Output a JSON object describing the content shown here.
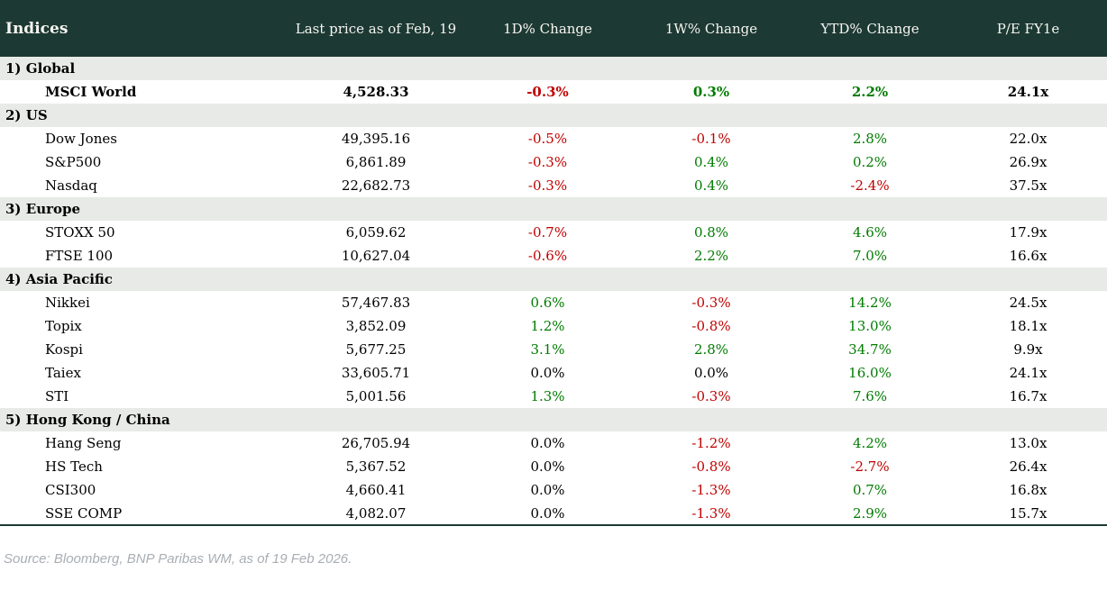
{
  "chart_data": {
    "type": "table",
    "columns": [
      "Indices",
      "Last price as of Feb, 19",
      "1D% Change",
      "1W% Change",
      "YTD% Change",
      "P/E FY1e"
    ],
    "sections": [
      {
        "label": "1) Global",
        "rows": [
          {
            "name": "MSCI World",
            "bold": true,
            "last_price": "4,528.33",
            "change_1d": "-0.3%",
            "change_1w": "0.3%",
            "change_ytd": "2.2%",
            "pe_fy1e": "24.1x"
          }
        ]
      },
      {
        "label": "2) US",
        "rows": [
          {
            "name": "Dow Jones",
            "bold": false,
            "last_price": "49,395.16",
            "change_1d": "-0.5%",
            "change_1w": "-0.1%",
            "change_ytd": "2.8%",
            "pe_fy1e": "22.0x"
          },
          {
            "name": "S&P500",
            "bold": false,
            "last_price": "6,861.89",
            "change_1d": "-0.3%",
            "change_1w": "0.4%",
            "change_ytd": "0.2%",
            "pe_fy1e": "26.9x"
          },
          {
            "name": "Nasdaq",
            "bold": false,
            "last_price": "22,682.73",
            "change_1d": "-0.3%",
            "change_1w": "0.4%",
            "change_ytd": "-2.4%",
            "pe_fy1e": "37.5x"
          }
        ]
      },
      {
        "label": "3) Europe",
        "rows": [
          {
            "name": "STOXX 50",
            "bold": false,
            "last_price": "6,059.62",
            "change_1d": "-0.7%",
            "change_1w": "0.8%",
            "change_ytd": "4.6%",
            "pe_fy1e": "17.9x"
          },
          {
            "name": "FTSE 100",
            "bold": false,
            "last_price": "10,627.04",
            "change_1d": "-0.6%",
            "change_1w": "2.2%",
            "change_ytd": "7.0%",
            "pe_fy1e": "16.6x"
          }
        ]
      },
      {
        "label": "4) Asia Pacific",
        "rows": [
          {
            "name": "Nikkei",
            "bold": false,
            "last_price": "57,467.83",
            "change_1d": "0.6%",
            "change_1w": "-0.3%",
            "change_ytd": "14.2%",
            "pe_fy1e": "24.5x"
          },
          {
            "name": "Topix",
            "bold": false,
            "last_price": "3,852.09",
            "change_1d": "1.2%",
            "change_1w": "-0.8%",
            "change_ytd": "13.0%",
            "pe_fy1e": "18.1x"
          },
          {
            "name": "Kospi",
            "bold": false,
            "last_price": "5,677.25",
            "change_1d": "3.1%",
            "change_1w": "2.8%",
            "change_ytd": "34.7%",
            "pe_fy1e": "9.9x"
          },
          {
            "name": "Taiex",
            "bold": false,
            "last_price": "33,605.71",
            "change_1d": "0.0%",
            "change_1w": "0.0%",
            "change_ytd": "16.0%",
            "pe_fy1e": "24.1x"
          },
          {
            "name": "STI",
            "bold": false,
            "last_price": "5,001.56",
            "change_1d": "1.3%",
            "change_1w": "-0.3%",
            "change_ytd": "7.6%",
            "pe_fy1e": "16.7x"
          }
        ]
      },
      {
        "label": "5) Hong Kong / China",
        "rows": [
          {
            "name": "Hang Seng",
            "bold": false,
            "last_price": "26,705.94",
            "change_1d": "0.0%",
            "change_1w": "-1.2%",
            "change_ytd": "4.2%",
            "pe_fy1e": "13.0x"
          },
          {
            "name": "HS Tech",
            "bold": false,
            "last_price": "5,367.52",
            "change_1d": "0.0%",
            "change_1w": "-0.8%",
            "change_ytd": "-2.7%",
            "pe_fy1e": "26.4x"
          },
          {
            "name": "CSI300",
            "bold": false,
            "last_price": "4,660.41",
            "change_1d": "0.0%",
            "change_1w": "-1.3%",
            "change_ytd": "0.7%",
            "pe_fy1e": "16.8x"
          },
          {
            "name": "SSE COMP",
            "bold": false,
            "last_price": "4,082.07",
            "change_1d": "0.0%",
            "change_1w": "-1.3%",
            "change_ytd": "2.9%",
            "pe_fy1e": "15.7x"
          }
        ]
      }
    ]
  },
  "footer": {
    "source_note": "Source: Bloomberg, BNP Paribas WM, as of 19 Feb 2026."
  },
  "colors": {
    "negative": "#c00000",
    "positive": "#007b00",
    "neutral": "#000000",
    "header_bg": "#1d3933",
    "section_bg": "#e8eae7",
    "source_text": "#a9aeb3"
  }
}
